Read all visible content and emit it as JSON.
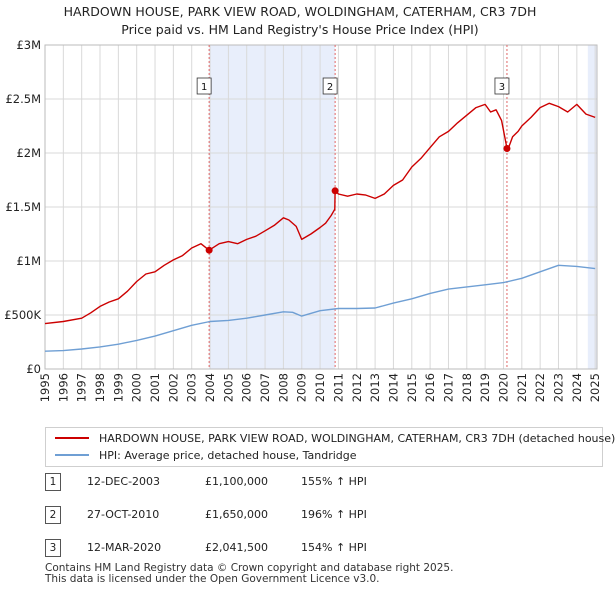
{
  "title_line1": "HARDOWN HOUSE, PARK VIEW ROAD, WOLDINGHAM, CATERHAM, CR3 7DH",
  "title_line2": "Price paid vs. HM Land Registry's House Price Index (HPI)",
  "colors": {
    "property": "#cc0000",
    "hpi": "#6f9fd4",
    "shade": "#e8eefb",
    "grid": "#d9d9d9",
    "vline": "#e06666"
  },
  "chart_data": {
    "type": "line",
    "title": "HARDOWN HOUSE, PARK VIEW ROAD, WOLDINGHAM, CATERHAM, CR3 7DH",
    "subtitle": "Price paid vs. HM Land Registry's House Price Index (HPI)",
    "xlabel": "",
    "ylabel": "",
    "xlim": [
      1995,
      2025.1
    ],
    "ylim": [
      0,
      3000000
    ],
    "x_ticks": [
      1995,
      1996,
      1997,
      1998,
      1999,
      2000,
      2001,
      2002,
      2003,
      2004,
      2005,
      2006,
      2007,
      2008,
      2009,
      2010,
      2011,
      2012,
      2013,
      2014,
      2015,
      2016,
      2017,
      2018,
      2019,
      2020,
      2021,
      2022,
      2023,
      2024,
      2025
    ],
    "y_ticks": [
      0,
      500000,
      1000000,
      1500000,
      2000000,
      2500000,
      3000000
    ],
    "y_tick_labels": [
      "£0",
      "£500K",
      "£1M",
      "£1.5M",
      "£2M",
      "£2.5M",
      "£3M"
    ],
    "grid": true,
    "series": [
      {
        "name": "HARDOWN HOUSE, PARK VIEW ROAD, WOLDINGHAM, CATERHAM, CR3 7DH (detached house)",
        "color": "#cc0000",
        "x": [
          1995.0,
          1996.0,
          1997.0,
          1997.5,
          1998.0,
          1998.5,
          1999.0,
          1999.5,
          2000.0,
          2000.5,
          2001.0,
          2001.5,
          2002.0,
          2002.5,
          2003.0,
          2003.5,
          2003.95,
          2004.5,
          2005.0,
          2005.5,
          2006.0,
          2006.5,
          2007.0,
          2007.5,
          2008.0,
          2008.3,
          2008.7,
          2009.0,
          2009.5,
          2010.0,
          2010.3,
          2010.6,
          2010.8,
          2010.82,
          2011.0,
          2011.5,
          2012.0,
          2012.5,
          2013.0,
          2013.5,
          2014.0,
          2014.5,
          2015.0,
          2015.5,
          2016.0,
          2016.5,
          2017.0,
          2017.5,
          2018.0,
          2018.5,
          2019.0,
          2019.3,
          2019.6,
          2019.9,
          2020.19,
          2020.3,
          2020.5,
          2020.8,
          2021.0,
          2021.5,
          2022.0,
          2022.5,
          2023.0,
          2023.5,
          2024.0,
          2024.5,
          2025.0
        ],
        "y": [
          420000,
          440000,
          470000,
          520000,
          580000,
          620000,
          650000,
          720000,
          810000,
          880000,
          900000,
          960000,
          1010000,
          1050000,
          1120000,
          1160000,
          1100000,
          1160000,
          1180000,
          1160000,
          1200000,
          1230000,
          1280000,
          1330000,
          1400000,
          1380000,
          1320000,
          1200000,
          1250000,
          1310000,
          1350000,
          1420000,
          1480000,
          1650000,
          1620000,
          1600000,
          1620000,
          1610000,
          1580000,
          1620000,
          1700000,
          1750000,
          1870000,
          1950000,
          2050000,
          2150000,
          2200000,
          2280000,
          2350000,
          2420000,
          2450000,
          2380000,
          2400000,
          2300000,
          2041500,
          2060000,
          2150000,
          2200000,
          2250000,
          2330000,
          2420000,
          2460000,
          2430000,
          2380000,
          2450000,
          2360000,
          2330000
        ]
      },
      {
        "name": "HPI: Average price, detached house, Tandridge",
        "color": "#6f9fd4",
        "x": [
          1995.0,
          1996.0,
          1997.0,
          1998.0,
          1999.0,
          2000.0,
          2001.0,
          2002.0,
          2003.0,
          2004.0,
          2005.0,
          2006.0,
          2007.0,
          2008.0,
          2008.5,
          2009.0,
          2010.0,
          2011.0,
          2012.0,
          2013.0,
          2014.0,
          2015.0,
          2016.0,
          2017.0,
          2018.0,
          2019.0,
          2020.0,
          2021.0,
          2022.0,
          2023.0,
          2024.0,
          2025.0
        ],
        "y": [
          165000,
          170000,
          185000,
          205000,
          230000,
          265000,
          305000,
          355000,
          405000,
          440000,
          450000,
          470000,
          500000,
          530000,
          525000,
          490000,
          540000,
          560000,
          560000,
          565000,
          610000,
          650000,
          700000,
          740000,
          760000,
          780000,
          800000,
          840000,
          900000,
          960000,
          950000,
          930000
        ]
      }
    ],
    "annotations": [
      {
        "label": "1",
        "x": 2003.95,
        "y": 1100000
      },
      {
        "label": "2",
        "x": 2010.82,
        "y": 1650000
      },
      {
        "label": "3",
        "x": 2020.19,
        "y": 2041500
      }
    ],
    "shaded_ranges": [
      [
        2003.95,
        2010.82
      ],
      [
        2024.6,
        2025.1
      ]
    ],
    "legend_position": "below"
  },
  "legend": {
    "property_label": "HARDOWN HOUSE, PARK VIEW ROAD, WOLDINGHAM, CATERHAM, CR3 7DH (detached house)",
    "hpi_label": "HPI: Average price, detached house, Tandridge"
  },
  "sales": [
    {
      "num": "1",
      "date": "12-DEC-2003",
      "price": "£1,100,000",
      "hpi": "155% ↑ HPI"
    },
    {
      "num": "2",
      "date": "27-OCT-2010",
      "price": "£1,650,000",
      "hpi": "196% ↑ HPI"
    },
    {
      "num": "3",
      "date": "12-MAR-2020",
      "price": "£2,041,500",
      "hpi": "154% ↑ HPI"
    }
  ],
  "footer": {
    "line1": "Contains HM Land Registry data © Crown copyright and database right 2025.",
    "line2": "This data is licensed under the Open Government Licence v3.0."
  }
}
